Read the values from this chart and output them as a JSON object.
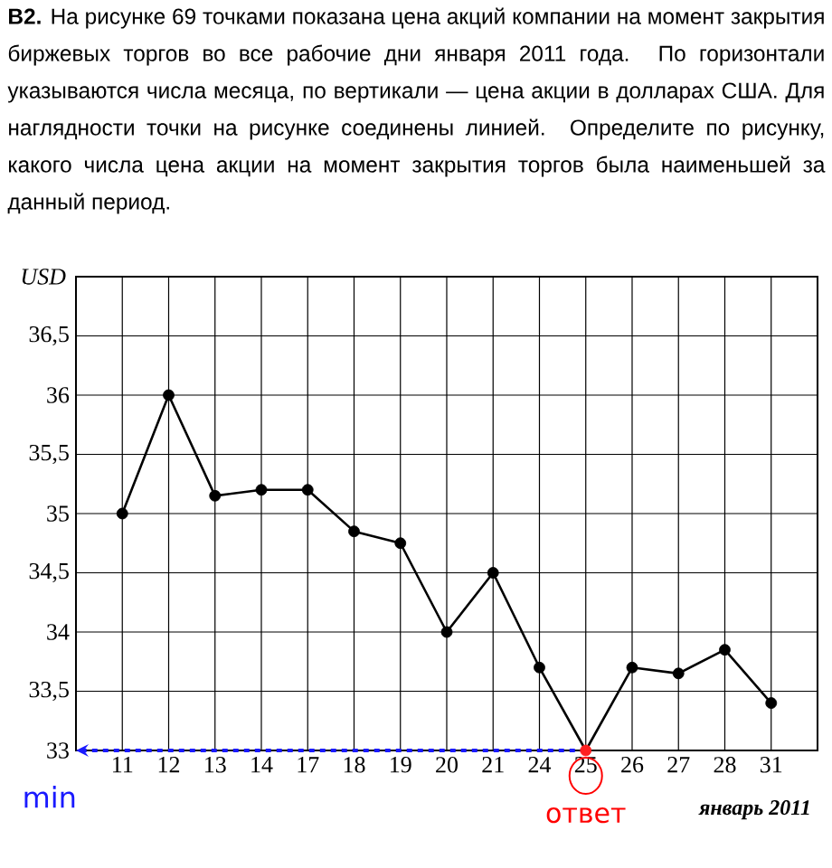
{
  "chart_data": {
    "type": "line",
    "title": "**B2.** На рисунке 69 точками показана цена акций компании на момент закрытия биржевых торгов во все рабочие дни января 2011 года. По горизонтали указываются числа месяца, по вертикали — цена акции в долларах США. Для наглядности точки на рисунке соединены линией. Определите по рисунку, какого числа цена акции на момент закрытия торгов была наименьшей за данный период.",
    "xlabel": "январь 2011",
    "ylabel": "USD",
    "categories": [
      "11",
      "12",
      "13",
      "14",
      "17",
      "18",
      "19",
      "20",
      "21",
      "24",
      "25",
      "26",
      "27",
      "28",
      "31"
    ],
    "series": [
      {
        "color": "#000000",
        "colors": [
          "#000000",
          "#000000",
          "#000000",
          "#000000",
          "#000000",
          "#000000",
          "#000000",
          "#000000",
          "#000000",
          "#000000",
          "#ff2020",
          "#000000",
          "#000000",
          "#000000",
          "#000000"
        ],
        "values": [
          35,
          36,
          35.15,
          35.2,
          35.2,
          34.85,
          34.75,
          34,
          34.5,
          33.7,
          33,
          33.7,
          33.65,
          33.85,
          33.4
        ]
      }
    ],
    "ylim": [
      33,
      37
    ],
    "yticks": [
      33,
      {
        "value": 33.5,
        "label": "33,5"
      },
      34,
      {
        "value": 34.5,
        "label": "34,5"
      },
      35,
      {
        "value": 35.5,
        "label": "35,5"
      },
      36,
      {
        "value": 36.5,
        "label": "36,5"
      }
    ],
    "grid": true,
    "marker": "circle",
    "line_style": "solid",
    "ref_lines": [
      {
        "axis": "y",
        "value": 33,
        "label": "min",
        "color": "#1a1aff",
        "line_style": "dashed"
      }
    ],
    "annotations": [
      {
        "text": "ответ",
        "x": "25",
        "y": 33
      }
    ]
  }
}
